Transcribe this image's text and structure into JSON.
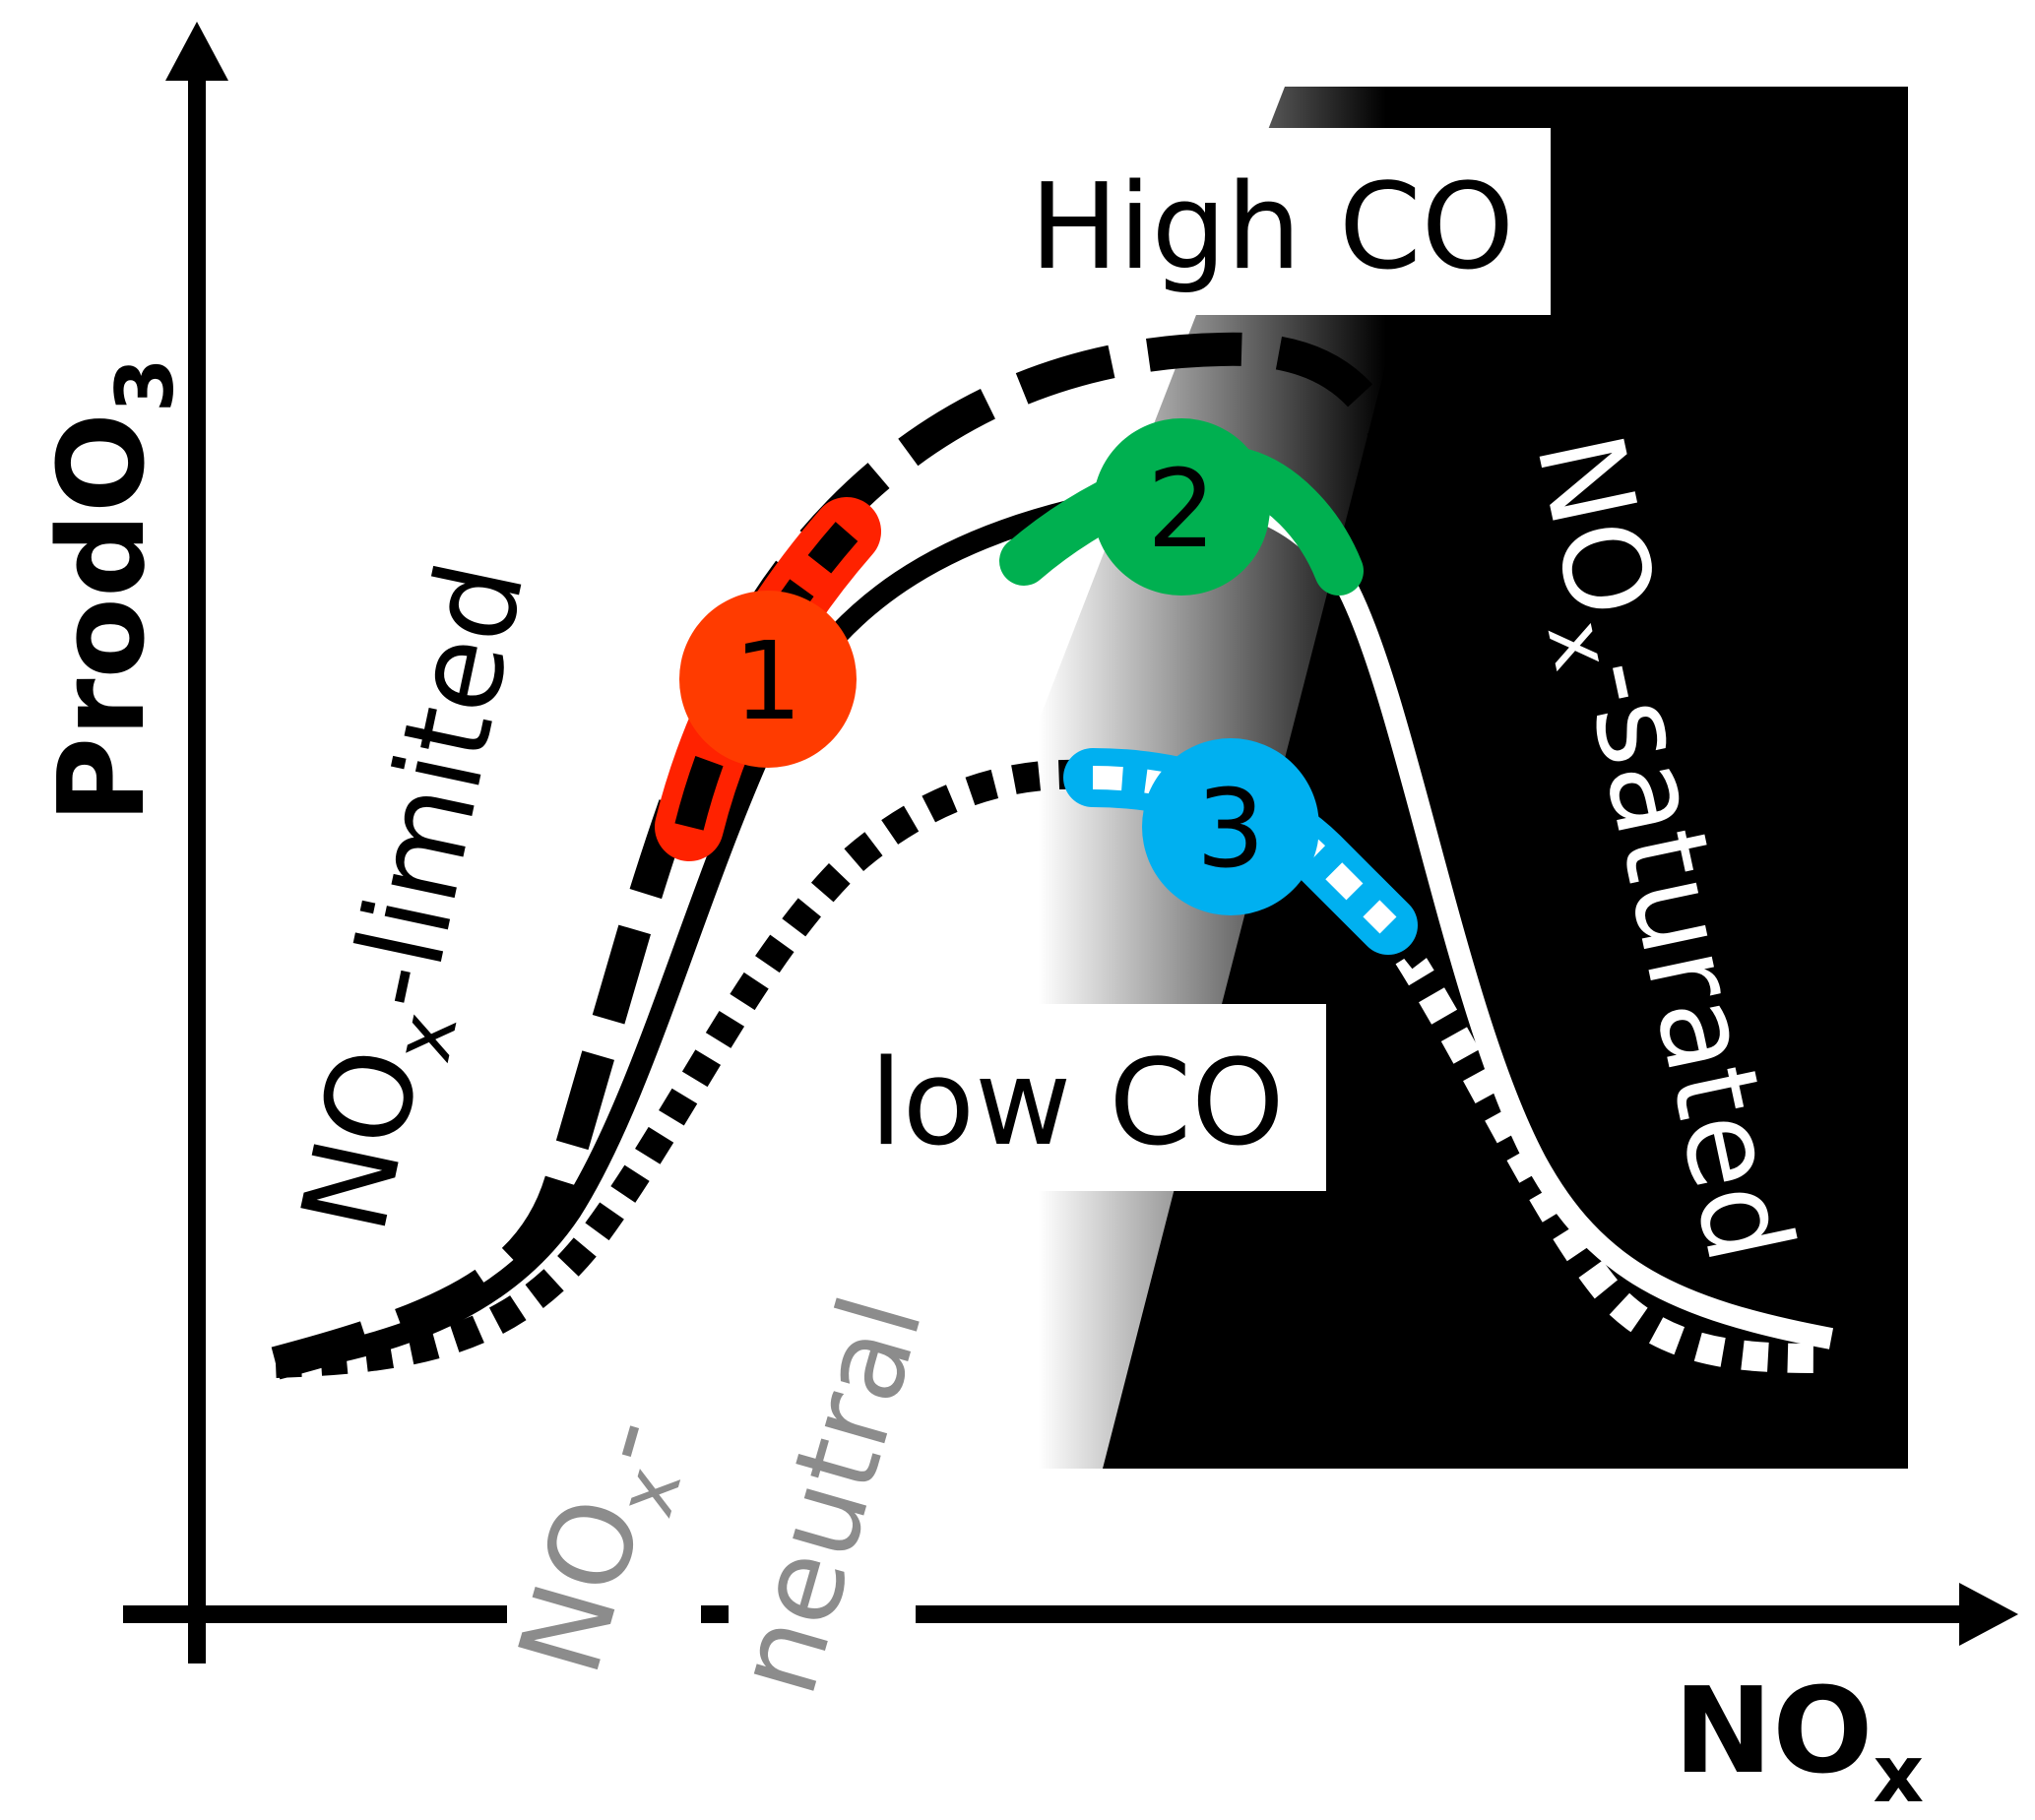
{
  "axes": {
    "y_label": "ProdO",
    "y_label_sub": "3",
    "x_label": "NO",
    "x_label_sub": "x"
  },
  "regimes": {
    "limited_main": "NO",
    "limited_sub": "x",
    "limited_rest": "-limited",
    "neutral_line1_main": "NO",
    "neutral_line1_sub": "x",
    "neutral_line1_rest": "-",
    "neutral_line2": "neutral",
    "saturated_main": "NO",
    "saturated_sub": "x",
    "saturated_rest": "-saturated"
  },
  "curves": {
    "high_co_label": "High CO",
    "low_co_label": "low CO"
  },
  "markers": [
    {
      "label": "1",
      "color": "#ff3b00"
    },
    {
      "label": "2",
      "color": "#00b050"
    },
    {
      "label": "3",
      "color": "#00b0f0"
    }
  ],
  "colors": {
    "marker1_band": "#ff2200",
    "marker2_band": "#00b050",
    "marker3_band": "#00b0f0",
    "neutral_text": "#8c8c8c"
  }
}
